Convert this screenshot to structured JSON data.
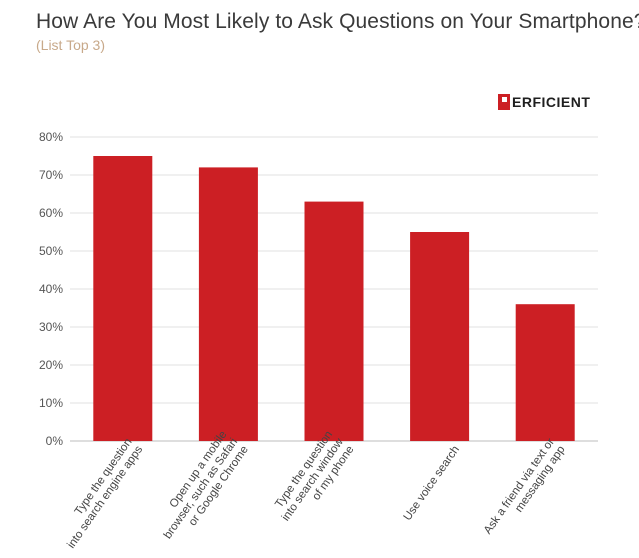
{
  "header": {
    "title": "How Are You Most Likely to Ask Questions on Your Smartphone?",
    "subtitle": "(List Top 3)"
  },
  "logo": {
    "text": "ERFICIENT",
    "brand": "PERFICIENT",
    "color": "#cc1f24"
  },
  "chart_data": {
    "type": "bar",
    "title": "How Are You Most Likely to Ask Questions on Your Smartphone?",
    "subtitle": "(List Top 3)",
    "categories": [
      [
        "Type the question",
        "into search engine apps"
      ],
      [
        "Open up a mobile",
        "browser, such as Safari",
        "or Google Chrome"
      ],
      [
        "Type the question",
        "into search window",
        "of my phone"
      ],
      [
        "Use voice search"
      ],
      [
        "Ask a friend via text or",
        "messaging app"
      ]
    ],
    "values": [
      75,
      72,
      63,
      55,
      36
    ],
    "ylim": [
      0,
      80
    ],
    "yticks": [
      "0%",
      "10%",
      "20%",
      "30%",
      "40%",
      "50%",
      "60%",
      "70%",
      "80%"
    ],
    "grid": true,
    "bar_color": "#cc1f24",
    "xlabel": "",
    "ylabel": ""
  }
}
